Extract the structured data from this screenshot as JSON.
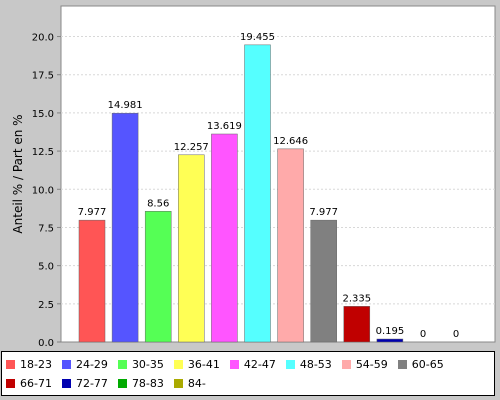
{
  "chart_data": {
    "type": "bar",
    "ylabel": "Anteil % / Part en %",
    "xlabel": "",
    "ylim": [
      0,
      22
    ],
    "yticks": [
      "0.0",
      "2.5",
      "5.0",
      "7.5",
      "10.0",
      "12.5",
      "15.0",
      "17.5",
      "20.0"
    ],
    "ytick_values": [
      0,
      2.5,
      5,
      7.5,
      10,
      12.5,
      15,
      17.5,
      20
    ],
    "grid": true,
    "legend": "bottom",
    "categories": [
      "18-23",
      "24-29",
      "30-35",
      "36-41",
      "42-47",
      "48-53",
      "54-59",
      "60-65",
      "66-71",
      "72-77",
      "78-83",
      "84-"
    ],
    "values": [
      7.977,
      14.981,
      8.56,
      12.257,
      13.619,
      19.455,
      12.646,
      7.977,
      2.335,
      0.195,
      0,
      0
    ],
    "value_labels": [
      "7.977",
      "14.981",
      "8.56",
      "12.257",
      "13.619",
      "19.455",
      "12.646",
      "7.977",
      "2.335",
      "0.195",
      "0",
      "0"
    ],
    "colors": [
      "#ff5555",
      "#5555ff",
      "#55ff55",
      "#ffff55",
      "#ff55ff",
      "#55ffff",
      "#ffaaaa",
      "#808080",
      "#c00000",
      "#0000b0",
      "#00aa00",
      "#aaaa00"
    ]
  }
}
